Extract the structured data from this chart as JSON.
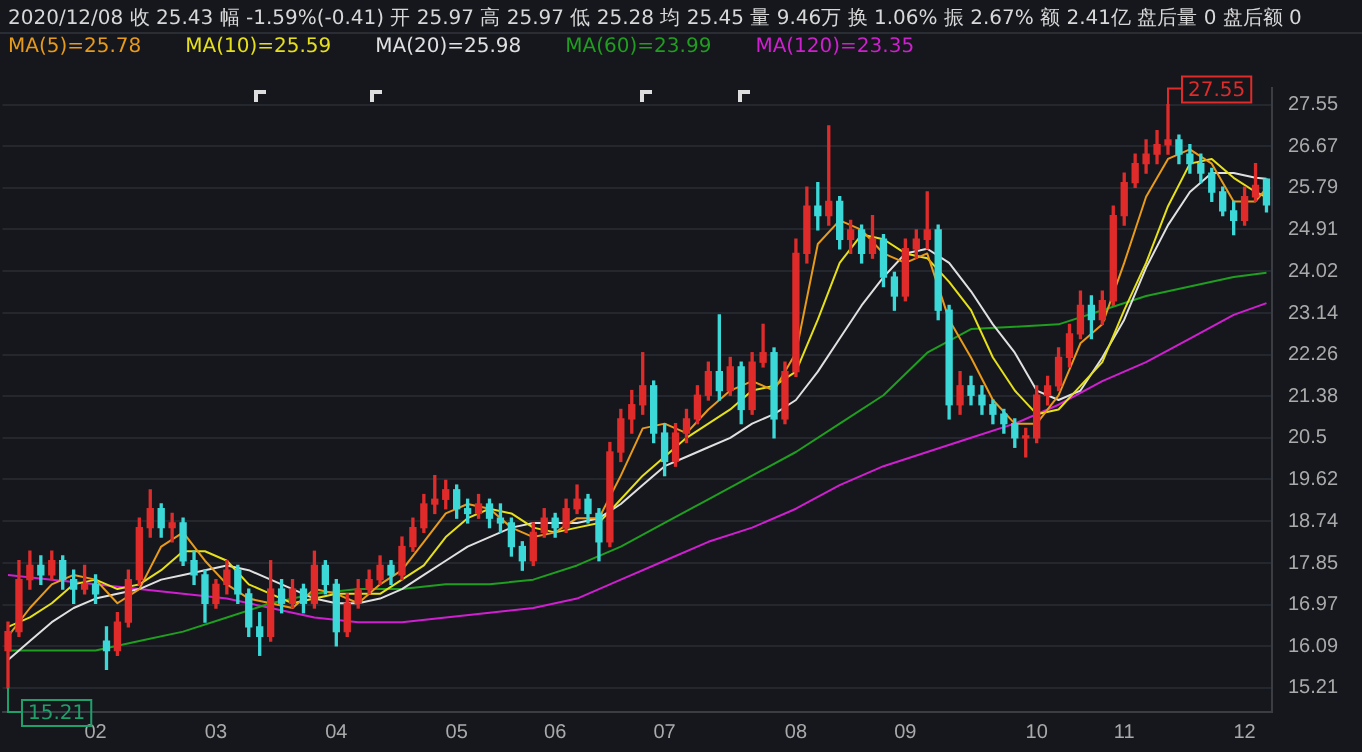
{
  "chart_data": {
    "type": "candlestick",
    "title": "2020/12/08 收 25.43 幅 -1.59%(-0.41) 开 25.97 高 25.97 低 25.28 均 25.45 量 9.46万 换 1.06% 振 2.67% 额 2.41亿 盘后量 0 盘后额 0",
    "categories": [
      null,
      null,
      null,
      null,
      null,
      null,
      null,
      null,
      "02",
      null,
      null,
      null,
      null,
      null,
      null,
      null,
      null,
      null,
      null,
      "03",
      null,
      null,
      null,
      null,
      null,
      null,
      null,
      null,
      null,
      null,
      "04",
      null,
      null,
      null,
      null,
      null,
      null,
      null,
      null,
      null,
      null,
      "05",
      null,
      null,
      null,
      null,
      null,
      null,
      null,
      null,
      "06",
      null,
      null,
      null,
      null,
      null,
      null,
      null,
      null,
      null,
      "07",
      null,
      null,
      null,
      null,
      null,
      null,
      null,
      null,
      null,
      null,
      null,
      "08",
      null,
      null,
      null,
      null,
      null,
      null,
      null,
      null,
      null,
      "09",
      null,
      null,
      null,
      null,
      null,
      null,
      null,
      null,
      null,
      null,
      null,
      "10",
      null,
      null,
      null,
      null,
      null,
      null,
      null,
      "11",
      null,
      null,
      null,
      null,
      null,
      null,
      null,
      null,
      null,
      null,
      "12",
      null,
      null
    ],
    "ohlc": [
      [
        16.0,
        16.6,
        15.21,
        16.4
      ],
      [
        16.4,
        17.9,
        16.3,
        17.5
      ],
      [
        17.5,
        18.1,
        17.3,
        17.8
      ],
      [
        17.8,
        18.0,
        17.4,
        17.6
      ],
      [
        17.6,
        18.1,
        17.5,
        17.9
      ],
      [
        17.9,
        18.0,
        17.3,
        17.5
      ],
      [
        17.5,
        17.7,
        17.0,
        17.3
      ],
      [
        17.3,
        17.8,
        17.2,
        17.4
      ],
      [
        17.4,
        17.6,
        17.0,
        17.2
      ],
      [
        16.2,
        16.5,
        15.6,
        16.0
      ],
      [
        16.0,
        16.8,
        15.9,
        16.6
      ],
      [
        16.6,
        17.7,
        16.5,
        17.5
      ],
      [
        17.5,
        18.8,
        17.4,
        18.6
      ],
      [
        18.6,
        19.4,
        18.4,
        19.0
      ],
      [
        19.0,
        19.1,
        18.4,
        18.6
      ],
      [
        18.6,
        18.9,
        18.3,
        18.7
      ],
      [
        18.7,
        18.8,
        17.8,
        17.9
      ],
      [
        17.9,
        18.1,
        17.4,
        17.6
      ],
      [
        17.6,
        17.7,
        16.6,
        17.0
      ],
      [
        17.0,
        17.5,
        16.9,
        17.4
      ],
      [
        17.4,
        17.9,
        17.2,
        17.7
      ],
      [
        17.7,
        17.8,
        17.0,
        17.2
      ],
      [
        17.2,
        17.3,
        16.3,
        16.5
      ],
      [
        16.5,
        16.8,
        15.9,
        16.3
      ],
      [
        16.3,
        17.9,
        16.2,
        17.3
      ],
      [
        17.3,
        17.5,
        16.8,
        17.0
      ],
      [
        17.0,
        17.5,
        16.9,
        17.3
      ],
      [
        17.3,
        17.4,
        16.8,
        17.0
      ],
      [
        17.0,
        18.1,
        16.9,
        17.8
      ],
      [
        17.8,
        17.9,
        17.2,
        17.4
      ],
      [
        17.4,
        17.5,
        16.1,
        16.4
      ],
      [
        16.4,
        17.2,
        16.3,
        17.0
      ],
      [
        17.0,
        17.5,
        16.9,
        17.3
      ],
      [
        17.3,
        17.7,
        17.2,
        17.5
      ],
      [
        17.5,
        18.0,
        17.4,
        17.8
      ],
      [
        17.8,
        17.9,
        17.4,
        17.6
      ],
      [
        17.6,
        18.4,
        17.5,
        18.2
      ],
      [
        18.2,
        18.8,
        18.1,
        18.6
      ],
      [
        18.6,
        19.3,
        18.5,
        19.1
      ],
      [
        19.1,
        19.7,
        18.9,
        19.2
      ],
      [
        19.2,
        19.6,
        19.0,
        19.4
      ],
      [
        19.4,
        19.5,
        18.8,
        19.0
      ],
      [
        19.0,
        19.2,
        18.7,
        18.9
      ],
      [
        18.9,
        19.3,
        18.8,
        19.1
      ],
      [
        19.1,
        19.2,
        18.6,
        18.8
      ],
      [
        18.8,
        19.1,
        18.5,
        18.7
      ],
      [
        18.7,
        18.8,
        18.0,
        18.2
      ],
      [
        18.2,
        18.3,
        17.7,
        17.9
      ],
      [
        17.9,
        18.7,
        17.8,
        18.5
      ],
      [
        18.5,
        19.0,
        18.4,
        18.8
      ],
      [
        18.8,
        18.9,
        18.4,
        18.6
      ],
      [
        18.6,
        19.2,
        18.5,
        19.0
      ],
      [
        19.0,
        19.5,
        18.9,
        19.2
      ],
      [
        19.2,
        19.3,
        18.7,
        18.9
      ],
      [
        18.9,
        19.0,
        17.9,
        18.3
      ],
      [
        18.3,
        20.4,
        18.2,
        20.2
      ],
      [
        20.2,
        21.1,
        20.0,
        20.9
      ],
      [
        20.9,
        21.5,
        20.6,
        21.2
      ],
      [
        21.2,
        22.3,
        21.0,
        21.6
      ],
      [
        21.6,
        21.7,
        20.4,
        20.6
      ],
      [
        20.6,
        20.8,
        19.7,
        20.0
      ],
      [
        20.0,
        20.8,
        19.9,
        20.6
      ],
      [
        20.6,
        21.1,
        20.4,
        20.9
      ],
      [
        20.9,
        21.6,
        20.8,
        21.4
      ],
      [
        21.4,
        22.1,
        21.3,
        21.9
      ],
      [
        21.9,
        23.1,
        21.3,
        21.5
      ],
      [
        21.5,
        22.2,
        21.4,
        22.0
      ],
      [
        22.0,
        22.1,
        20.8,
        21.1
      ],
      [
        21.1,
        22.3,
        21.0,
        22.1
      ],
      [
        22.1,
        22.9,
        22.0,
        22.3
      ],
      [
        22.3,
        22.4,
        20.5,
        20.9
      ],
      [
        20.9,
        22.1,
        20.8,
        21.9
      ],
      [
        21.9,
        24.7,
        21.8,
        24.4
      ],
      [
        24.4,
        25.8,
        24.2,
        25.4
      ],
      [
        25.4,
        25.9,
        24.9,
        25.2
      ],
      [
        25.2,
        27.1,
        25.0,
        25.5
      ],
      [
        25.5,
        25.6,
        24.5,
        24.7
      ],
      [
        24.7,
        25.1,
        24.4,
        24.9
      ],
      [
        24.9,
        25.0,
        24.2,
        24.4
      ],
      [
        24.4,
        25.2,
        24.3,
        24.7
      ],
      [
        24.7,
        24.8,
        23.7,
        23.9
      ],
      [
        23.9,
        24.0,
        23.2,
        23.5
      ],
      [
        23.5,
        24.7,
        23.4,
        24.5
      ],
      [
        24.5,
        24.9,
        24.3,
        24.7
      ],
      [
        24.7,
        25.7,
        24.5,
        24.9
      ],
      [
        24.9,
        25.0,
        23.0,
        23.2
      ],
      [
        23.2,
        23.3,
        20.9,
        21.2
      ],
      [
        21.2,
        21.9,
        21.0,
        21.6
      ],
      [
        21.6,
        21.8,
        21.2,
        21.4
      ],
      [
        21.4,
        21.6,
        21.0,
        21.2
      ],
      [
        21.2,
        21.3,
        20.8,
        21.0
      ],
      [
        21.0,
        21.1,
        20.6,
        20.8
      ],
      [
        20.8,
        20.9,
        20.3,
        20.5
      ],
      [
        20.5,
        20.7,
        20.1,
        20.5
      ],
      [
        20.5,
        21.6,
        20.4,
        21.4
      ],
      [
        21.4,
        21.8,
        21.2,
        21.6
      ],
      [
        21.6,
        22.4,
        21.5,
        22.2
      ],
      [
        22.2,
        22.9,
        22.0,
        22.7
      ],
      [
        22.7,
        23.6,
        22.6,
        23.3
      ],
      [
        23.3,
        23.5,
        22.6,
        23.0
      ],
      [
        23.0,
        23.6,
        22.9,
        23.4
      ],
      [
        23.4,
        25.4,
        23.3,
        25.2
      ],
      [
        25.2,
        26.1,
        25.0,
        25.9
      ],
      [
        25.9,
        26.5,
        25.8,
        26.3
      ],
      [
        26.3,
        26.8,
        26.1,
        26.5
      ],
      [
        26.5,
        27.0,
        26.3,
        26.7
      ],
      [
        26.7,
        27.55,
        26.5,
        26.8
      ],
      [
        26.8,
        26.9,
        26.3,
        26.5
      ],
      [
        26.5,
        26.7,
        26.1,
        26.3
      ],
      [
        26.3,
        26.5,
        25.9,
        26.1
      ],
      [
        26.1,
        26.2,
        25.5,
        25.7
      ],
      [
        25.7,
        25.8,
        25.2,
        25.3
      ],
      [
        25.3,
        25.5,
        24.8,
        25.1
      ],
      [
        25.1,
        25.8,
        25.0,
        25.6
      ],
      [
        25.6,
        26.3,
        25.5,
        25.84
      ],
      [
        25.97,
        25.97,
        25.28,
        25.43
      ]
    ],
    "series": [
      {
        "type": "line",
        "name": "MA(5)=25.78",
        "color": "#e89a1a",
        "values": [
          16.3,
          null,
          16.9,
          null,
          17.4,
          null,
          17.6,
          null,
          17.5,
          null,
          17.0,
          null,
          17.3,
          null,
          18.2,
          null,
          18.5,
          null,
          17.9,
          null,
          17.4,
          null,
          17.1,
          null,
          17.0,
          null,
          16.9,
          null,
          17.3,
          null,
          17.2,
          null,
          17.0,
          null,
          17.4,
          null,
          17.7,
          null,
          18.3,
          null,
          18.9,
          null,
          19.1,
          null,
          19.0,
          null,
          18.6,
          null,
          18.4,
          null,
          18.5,
          null,
          18.8,
          null,
          18.8,
          null,
          19.7,
          null,
          20.7,
          null,
          20.8,
          null,
          20.6,
          null,
          21.1,
          null,
          21.5,
          null,
          21.7,
          null,
          21.5,
          null,
          22.3,
          null,
          24.6,
          null,
          25.1,
          null,
          24.9,
          null,
          24.4,
          null,
          24.2,
          null,
          24.4,
          null,
          23.0,
          null,
          22.2,
          null,
          21.3,
          null,
          20.8,
          null,
          20.8,
          null,
          21.4,
          null,
          22.5,
          null,
          22.9,
          null,
          24.2,
          null,
          25.6,
          null,
          26.4,
          null,
          26.6,
          null,
          26.3,
          null,
          25.5,
          null,
          25.5,
          25.78
        ]
      },
      {
        "type": "line",
        "name": "MA(10)=25.59",
        "color": "#e6e01a",
        "values": [
          16.5,
          null,
          16.7,
          null,
          17.0,
          null,
          17.4,
          null,
          17.5,
          null,
          17.3,
          null,
          17.4,
          null,
          17.7,
          null,
          18.1,
          null,
          18.1,
          null,
          17.9,
          null,
          17.4,
          null,
          17.2,
          null,
          17.0,
          null,
          17.1,
          null,
          17.2,
          null,
          17.2,
          null,
          17.2,
          null,
          17.5,
          null,
          17.8,
          null,
          18.4,
          null,
          18.8,
          null,
          19.0,
          null,
          18.9,
          null,
          18.6,
          null,
          18.5,
          null,
          18.6,
          null,
          18.7,
          null,
          19.2,
          null,
          19.7,
          null,
          20.1,
          null,
          20.5,
          null,
          20.8,
          null,
          21.1,
          null,
          21.5,
          null,
          21.6,
          null,
          21.9,
          null,
          23.0,
          null,
          24.2,
          null,
          24.8,
          null,
          24.7,
          null,
          24.4,
          null,
          24.3,
          null,
          23.8,
          null,
          23.2,
          null,
          22.2,
          null,
          21.5,
          null,
          21.0,
          null,
          21.1,
          null,
          21.6,
          null,
          22.1,
          null,
          23.2,
          null,
          24.2,
          null,
          25.4,
          null,
          26.3,
          null,
          26.4,
          null,
          26.0,
          null,
          25.7,
          25.59
        ]
      },
      {
        "type": "line",
        "name": "MA(20)=25.98",
        "color": "#e0e0e0",
        "values": [
          15.8,
          null,
          16.2,
          null,
          16.6,
          null,
          16.9,
          null,
          17.1,
          null,
          17.2,
          null,
          17.3,
          null,
          17.5,
          null,
          17.6,
          null,
          17.7,
          null,
          17.8,
          null,
          17.7,
          null,
          17.5,
          null,
          17.3,
          null,
          17.1,
          null,
          17.0,
          null,
          17.0,
          null,
          17.1,
          null,
          17.3,
          null,
          17.6,
          null,
          17.9,
          null,
          18.2,
          null,
          18.4,
          null,
          18.6,
          null,
          18.7,
          null,
          18.7,
          null,
          18.7,
          null,
          18.8,
          null,
          19.1,
          null,
          19.5,
          null,
          19.9,
          null,
          20.1,
          null,
          20.3,
          null,
          20.5,
          null,
          20.8,
          null,
          21.0,
          null,
          21.3,
          null,
          21.9,
          null,
          22.6,
          null,
          23.3,
          null,
          23.9,
          null,
          24.4,
          null,
          24.5,
          null,
          24.2,
          null,
          23.6,
          null,
          22.9,
          null,
          22.3,
          null,
          21.5,
          null,
          21.3,
          null,
          21.5,
          null,
          22.2,
          null,
          23.0,
          null,
          24.1,
          null,
          25.0,
          null,
          25.7,
          null,
          26.1,
          null,
          26.1,
          null,
          26.0,
          25.98
        ]
      },
      {
        "type": "line",
        "name": "MA(60)=23.99",
        "color": "#1f9e1f",
        "values": [
          16.0,
          null,
          null,
          null,
          16.0,
          null,
          null,
          null,
          16.0,
          null,
          null,
          null,
          16.2,
          null,
          null,
          null,
          16.4,
          null,
          null,
          null,
          16.7,
          null,
          null,
          null,
          17.0,
          null,
          null,
          null,
          17.2,
          null,
          null,
          null,
          17.3,
          null,
          null,
          null,
          17.3,
          null,
          null,
          null,
          17.4,
          null,
          null,
          null,
          17.4,
          null,
          null,
          null,
          17.5,
          null,
          null,
          null,
          17.8,
          null,
          null,
          null,
          18.2,
          null,
          null,
          null,
          18.7,
          null,
          null,
          null,
          19.2,
          null,
          null,
          null,
          19.7,
          null,
          null,
          null,
          20.2,
          null,
          null,
          null,
          20.8,
          null,
          null,
          null,
          21.4,
          null,
          null,
          null,
          22.3,
          null,
          null,
          null,
          22.8,
          null,
          null,
          null,
          22.85,
          null,
          null,
          null,
          22.9,
          null,
          null,
          null,
          23.2,
          null,
          null,
          null,
          23.5,
          null,
          null,
          null,
          23.7,
          null,
          null,
          null,
          23.9,
          null,
          null,
          23.99
        ]
      },
      {
        "type": "line",
        "name": "MA(120)=23.35",
        "color": "#d01fd0",
        "values": [
          17.6,
          null,
          null,
          null,
          17.5,
          null,
          null,
          null,
          17.4,
          null,
          null,
          null,
          17.3,
          null,
          null,
          null,
          17.2,
          null,
          null,
          null,
          17.1,
          null,
          null,
          null,
          16.9,
          null,
          null,
          null,
          16.7,
          null,
          null,
          null,
          16.6,
          null,
          null,
          null,
          16.6,
          null,
          null,
          null,
          16.7,
          null,
          null,
          null,
          16.8,
          null,
          null,
          null,
          16.9,
          null,
          null,
          null,
          17.1,
          null,
          null,
          null,
          17.5,
          null,
          null,
          null,
          17.9,
          null,
          null,
          null,
          18.3,
          null,
          null,
          null,
          18.6,
          null,
          null,
          null,
          19.0,
          null,
          null,
          null,
          19.5,
          null,
          null,
          null,
          19.9,
          null,
          null,
          null,
          20.2,
          null,
          null,
          null,
          20.5,
          null,
          null,
          null,
          20.8,
          null,
          null,
          null,
          21.2,
          null,
          null,
          null,
          21.7,
          null,
          null,
          null,
          22.1,
          null,
          null,
          null,
          22.6,
          null,
          null,
          null,
          23.1,
          null,
          null,
          23.35
        ]
      }
    ],
    "annotations": [
      "27.55",
      "15.21"
    ],
    "ylim": [
      14.7,
      27.9
    ],
    "yticks": [
      15.21,
      16.09,
      16.97,
      17.85,
      18.74,
      19.62,
      20.5,
      21.38,
      22.26,
      23.14,
      24.02,
      24.91,
      25.79,
      26.67,
      27.55
    ],
    "grid": "y",
    "legend": "top left",
    "marker": "none",
    "line_style": "solid"
  }
}
